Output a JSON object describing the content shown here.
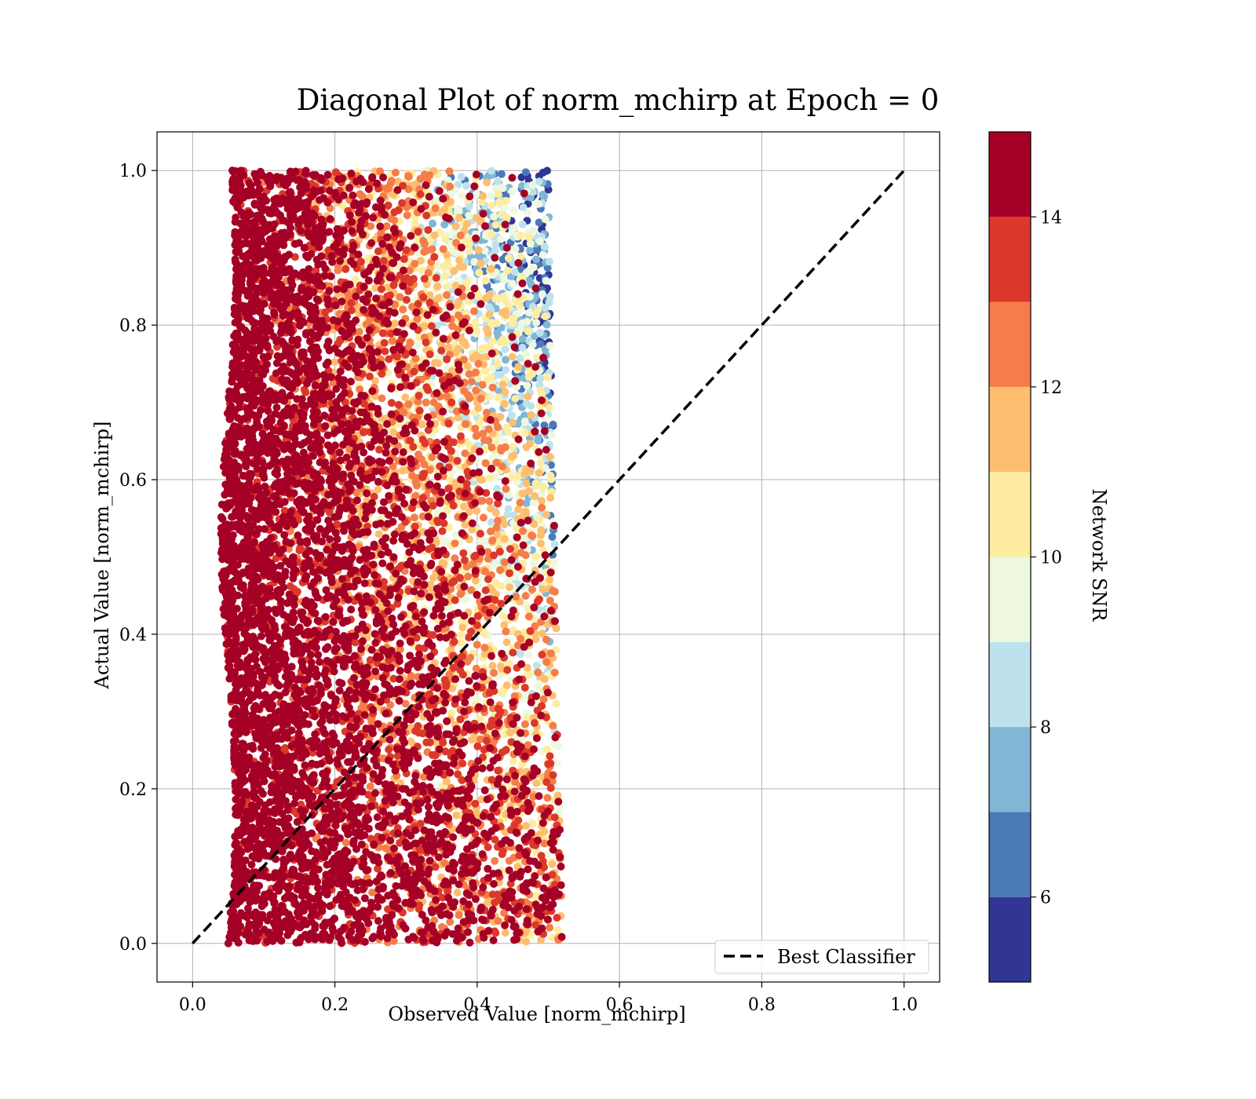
{
  "chart_data": {
    "type": "scatter",
    "title": "Diagonal Plot of norm_mchirp at Epoch = 0",
    "xlabel": "Observed Value [norm_mchirp]",
    "ylabel": "Actual Value [norm_mchirp]",
    "xlim": [
      -0.05,
      1.05
    ],
    "ylim": [
      -0.05,
      1.05
    ],
    "x_ticks": [
      "0.0",
      "0.2",
      "0.4",
      "0.6",
      "0.8",
      "1.0"
    ],
    "y_ticks": [
      "0.0",
      "0.2",
      "0.4",
      "0.6",
      "0.8",
      "1.0"
    ],
    "grid": true,
    "legend": {
      "position": "lower-right",
      "entries": [
        "Best Classifier"
      ]
    },
    "reference_line": {
      "name": "Best Classifier",
      "style": "dashed",
      "color": "#000000",
      "x": [
        0,
        1
      ],
      "y": [
        0,
        1
      ]
    },
    "colorbar": {
      "label": "Network SNR",
      "range": [
        5,
        15
      ],
      "ticks": [
        "6",
        "8",
        "10",
        "12",
        "14"
      ],
      "levels": [
        {
          "from": 5,
          "to": 6,
          "color": "#313695"
        },
        {
          "from": 6,
          "to": 7,
          "color": "#4a7ab8"
        },
        {
          "from": 7,
          "to": 8,
          "color": "#81b6d6"
        },
        {
          "from": 8,
          "to": 9,
          "color": "#bde2ed"
        },
        {
          "from": 9,
          "to": 10,
          "color": "#eef8df"
        },
        {
          "from": 10,
          "to": 11,
          "color": "#feeda1"
        },
        {
          "from": 11,
          "to": 12,
          "color": "#fdbe70"
        },
        {
          "from": 12,
          "to": 13,
          "color": "#f57d4a"
        },
        {
          "from": 13,
          "to": 14,
          "color": "#db382b"
        },
        {
          "from": 14,
          "to": 15,
          "color": "#a50026"
        }
      ]
    },
    "scatter_distribution": {
      "point_count": 9000,
      "x_range": [
        0.05,
        0.53
      ],
      "y_range": [
        0.0,
        1.0
      ],
      "observed_upper_bound_at_y0": 0.52,
      "observed_upper_bound_at_y1": 0.5,
      "snr_trend": "high SNR (>14) concentrated at low observed values; low SNR (<9) concentrated at observed 0.3-0.5 and high actual values",
      "seed": 7
    }
  }
}
